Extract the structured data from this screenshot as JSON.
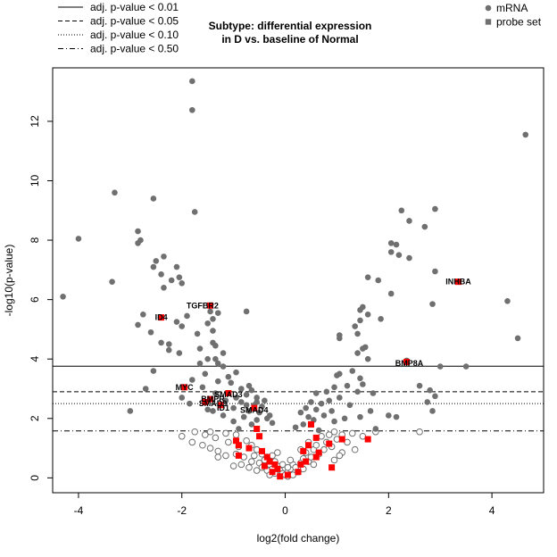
{
  "chart_data": {
    "type": "scatter",
    "title_lines": [
      "Subtype: differential expression",
      "in D vs. baseline of Normal"
    ],
    "xlabel": "log2(fold change)",
    "ylabel": "-log10(p-value)",
    "xlim": [
      -4.5,
      5.0
    ],
    "ylim": [
      -0.5,
      13.8
    ],
    "x_ticks": [
      -4,
      -2,
      0,
      2,
      4
    ],
    "y_ticks": [
      0,
      2,
      4,
      6,
      8,
      10,
      12
    ],
    "threshold_legend": [
      {
        "label": "adj. p-value < 0.01",
        "dash": "solid",
        "y": 3.76
      },
      {
        "label": "adj. p-value < 0.05",
        "dash": "dashed",
        "y": 2.9
      },
      {
        "label": "adj. p-value < 0.10",
        "dash": "dotted",
        "y": 2.5
      },
      {
        "label": "adj. p-value < 0.50",
        "dash": "dotdash",
        "y": 1.58
      }
    ],
    "type_legend": [
      {
        "label": "mRNA",
        "shape": "circle",
        "color": "#707070"
      },
      {
        "label": "probe set",
        "shape": "square",
        "color": "#707070"
      }
    ],
    "colors": {
      "mrna": "#707070",
      "probe": "#ff0000",
      "nonsig": "#707070"
    },
    "significant_points": [
      [
        -1.8,
        13.35
      ],
      [
        -1.8,
        12.38
      ],
      [
        -3.3,
        9.6
      ],
      [
        -2.55,
        9.4
      ],
      [
        -1.75,
        8.95
      ],
      [
        -2.85,
        8.3
      ],
      [
        -2.8,
        8.0
      ],
      [
        -2.85,
        7.9
      ],
      [
        -4.0,
        8.05
      ],
      [
        -2.35,
        7.45
      ],
      [
        -2.5,
        7.3
      ],
      [
        -2.55,
        7.1
      ],
      [
        -2.1,
        7.1
      ],
      [
        -2.4,
        6.85
      ],
      [
        -2.2,
        6.65
      ],
      [
        -2.05,
        6.75
      ],
      [
        -2.0,
        6.55
      ],
      [
        -3.35,
        6.6
      ],
      [
        -4.3,
        6.1
      ],
      [
        -2.35,
        6.4
      ],
      [
        -0.75,
        5.6
      ],
      [
        -1.45,
        5.6
      ],
      [
        -1.3,
        5.55
      ],
      [
        -1.4,
        5.35
      ],
      [
        -2.75,
        5.5
      ],
      [
        -1.9,
        5.45
      ],
      [
        -2.1,
        5.25
      ],
      [
        -1.5,
        5.2
      ],
      [
        -2.0,
        5.1
      ],
      [
        -2.85,
        5.15
      ],
      [
        -1.4,
        4.95
      ],
      [
        -2.6,
        4.9
      ],
      [
        -1.7,
        4.85
      ],
      [
        -2.4,
        4.55
      ],
      [
        -1.4,
        4.55
      ],
      [
        -2.25,
        4.5
      ],
      [
        -2.05,
        4.2
      ],
      [
        -1.35,
        4.45
      ],
      [
        -2.25,
        4.3
      ],
      [
        -1.35,
        4.0
      ],
      [
        -1.65,
        4.35
      ],
      [
        -1.2,
        4.2
      ],
      [
        -1.3,
        3.85
      ],
      [
        -1.5,
        4.0
      ],
      [
        -1.65,
        3.85
      ],
      [
        -1.55,
        3.5
      ],
      [
        -1.1,
        3.4
      ],
      [
        -2.55,
        3.6
      ],
      [
        -1.8,
        3.3
      ],
      [
        -1.2,
        3.75
      ],
      [
        -0.95,
        3.55
      ],
      [
        -1.3,
        3.25
      ],
      [
        -0.7,
        3.1
      ],
      [
        -1.05,
        3.2
      ],
      [
        -1.6,
        3.05
      ],
      [
        -0.85,
        3.0
      ],
      [
        -0.65,
        2.95
      ],
      [
        -1.35,
        2.85
      ],
      [
        -0.95,
        2.7
      ],
      [
        -0.75,
        2.8
      ],
      [
        -0.55,
        2.7
      ],
      [
        -1.15,
        2.6
      ],
      [
        -0.85,
        2.55
      ],
      [
        -0.6,
        2.45
      ],
      [
        -0.45,
        2.4
      ],
      [
        -1.0,
        2.35
      ],
      [
        -0.7,
        2.25
      ],
      [
        -0.5,
        2.2
      ],
      [
        -0.35,
        2.0
      ],
      [
        -0.25,
        1.85
      ],
      [
        -0.55,
        1.95
      ],
      [
        -0.65,
        1.8
      ],
      [
        -0.8,
        2.05
      ],
      [
        -1.0,
        1.9
      ],
      [
        -1.2,
        2.1
      ],
      [
        -1.4,
        2.25
      ],
      [
        -2.0,
        2.7
      ],
      [
        -2.7,
        3.0
      ],
      [
        -3.0,
        2.25
      ],
      [
        -1.85,
        2.5
      ],
      [
        -1.5,
        2.3
      ],
      [
        -0.9,
        1.65
      ],
      [
        -0.4,
        2.6
      ],
      [
        -0.3,
        2.1
      ],
      [
        -0.55,
        2.55
      ],
      [
        -0.75,
        2.45
      ],
      [
        4.65,
        11.55
      ],
      [
        2.25,
        9.0
      ],
      [
        2.9,
        9.05
      ],
      [
        2.4,
        8.65
      ],
      [
        2.7,
        8.45
      ],
      [
        2.05,
        7.9
      ],
      [
        2.15,
        7.85
      ],
      [
        2.05,
        7.6
      ],
      [
        2.2,
        7.5
      ],
      [
        2.4,
        7.4
      ],
      [
        2.9,
        6.95
      ],
      [
        1.6,
        6.75
      ],
      [
        1.8,
        6.65
      ],
      [
        3.35,
        6.6
      ],
      [
        2.05,
        6.2
      ],
      [
        4.3,
        5.95
      ],
      [
        2.85,
        5.85
      ],
      [
        1.5,
        5.75
      ],
      [
        1.45,
        5.65
      ],
      [
        1.6,
        5.5
      ],
      [
        1.85,
        5.35
      ],
      [
        1.45,
        5.3
      ],
      [
        1.35,
        5.1
      ],
      [
        1.4,
        4.85
      ],
      [
        1.05,
        4.8
      ],
      [
        1.05,
        4.7
      ],
      [
        4.5,
        4.7
      ],
      [
        1.55,
        4.4
      ],
      [
        1.5,
        4.35
      ],
      [
        1.4,
        4.2
      ],
      [
        1.6,
        4.0
      ],
      [
        2.35,
        3.95
      ],
      [
        3.0,
        3.75
      ],
      [
        3.5,
        3.75
      ],
      [
        1.3,
        3.6
      ],
      [
        1.45,
        3.35
      ],
      [
        1.05,
        3.5
      ],
      [
        1.0,
        3.45
      ],
      [
        1.5,
        3.15
      ],
      [
        1.2,
        3.1
      ],
      [
        0.95,
        3.05
      ],
      [
        1.4,
        2.9
      ],
      [
        1.7,
        2.85
      ],
      [
        2.6,
        3.1
      ],
      [
        2.8,
        2.95
      ],
      [
        2.9,
        2.75
      ],
      [
        0.8,
        2.9
      ],
      [
        0.6,
        2.85
      ],
      [
        1.05,
        2.7
      ],
      [
        0.85,
        2.6
      ],
      [
        0.7,
        2.5
      ],
      [
        0.5,
        2.55
      ],
      [
        1.25,
        2.45
      ],
      [
        0.4,
        2.35
      ],
      [
        0.6,
        2.3
      ],
      [
        0.9,
        2.25
      ],
      [
        0.3,
        2.2
      ],
      [
        0.45,
        2.05
      ],
      [
        0.75,
        2.1
      ],
      [
        0.55,
        1.95
      ],
      [
        0.35,
        1.8
      ],
      [
        0.2,
        1.7
      ],
      [
        0.95,
        1.9
      ],
      [
        1.15,
        2.0
      ],
      [
        1.45,
        2.05
      ],
      [
        1.65,
        2.25
      ],
      [
        2.0,
        2.1
      ],
      [
        2.15,
        2.05
      ],
      [
        2.75,
        2.55
      ],
      [
        2.85,
        2.25
      ],
      [
        1.75,
        1.65
      ],
      [
        0.65,
        1.6
      ]
    ],
    "nonsignificant_points": [
      [
        -1.75,
        1.55
      ],
      [
        -1.55,
        1.45
      ],
      [
        -1.35,
        1.35
      ],
      [
        -1.45,
        1.55
      ],
      [
        -1.15,
        1.5
      ],
      [
        -0.95,
        1.45
      ],
      [
        -1.6,
        1.1
      ],
      [
        -1.45,
        1.0
      ],
      [
        -1.3,
        0.9
      ],
      [
        -1.1,
        1.2
      ],
      [
        -0.9,
        1.05
      ],
      [
        -0.75,
        1.25
      ],
      [
        -0.65,
        1.1
      ],
      [
        -0.55,
        0.95
      ],
      [
        -1.3,
        0.7
      ],
      [
        -1.15,
        0.75
      ],
      [
        -0.95,
        0.8
      ],
      [
        -0.8,
        0.7
      ],
      [
        -0.6,
        0.75
      ],
      [
        -0.45,
        0.8
      ],
      [
        -0.35,
        0.7
      ],
      [
        -0.65,
        0.55
      ],
      [
        -0.5,
        0.5
      ],
      [
        -0.4,
        0.6
      ],
      [
        -0.3,
        0.45
      ],
      [
        -0.2,
        0.55
      ],
      [
        -0.15,
        0.4
      ],
      [
        -0.25,
        0.3
      ],
      [
        -0.1,
        0.25
      ],
      [
        -0.05,
        0.15
      ],
      [
        0.0,
        0.1
      ],
      [
        0.05,
        0.05
      ],
      [
        -0.35,
        0.25
      ],
      [
        -0.45,
        0.35
      ],
      [
        -0.55,
        0.25
      ],
      [
        -0.7,
        0.35
      ],
      [
        -0.85,
        0.45
      ],
      [
        -1.0,
        0.4
      ],
      [
        -0.2,
        0.15
      ],
      [
        -0.3,
        0.1
      ],
      [
        0.05,
        0.2
      ],
      [
        0.1,
        0.3
      ],
      [
        0.15,
        0.45
      ],
      [
        0.2,
        0.35
      ],
      [
        0.3,
        0.5
      ],
      [
        0.35,
        0.65
      ],
      [
        0.45,
        0.55
      ],
      [
        0.5,
        0.7
      ],
      [
        0.4,
        0.85
      ],
      [
        0.55,
        0.95
      ],
      [
        0.65,
        0.8
      ],
      [
        0.75,
        0.95
      ],
      [
        0.6,
        1.1
      ],
      [
        0.8,
        1.2
      ],
      [
        0.9,
        1.05
      ],
      [
        1.0,
        1.3
      ],
      [
        0.7,
        1.4
      ],
      [
        0.85,
        1.45
      ],
      [
        0.95,
        1.55
      ],
      [
        1.1,
        1.45
      ],
      [
        1.2,
        1.2
      ],
      [
        1.3,
        1.5
      ],
      [
        1.35,
        0.95
      ],
      [
        1.1,
        0.85
      ],
      [
        0.95,
        0.6
      ],
      [
        1.05,
        0.75
      ],
      [
        0.25,
        0.2
      ],
      [
        0.35,
        0.3
      ],
      [
        0.15,
        0.1
      ],
      [
        0.55,
        0.45
      ],
      [
        0.45,
        1.2
      ],
      [
        0.3,
        0.95
      ],
      [
        1.5,
        1.4
      ],
      [
        1.75,
        1.55
      ],
      [
        2.6,
        1.55
      ],
      [
        -2.0,
        1.4
      ],
      [
        -1.8,
        1.2
      ],
      [
        -0.25,
        0.75
      ],
      [
        -0.15,
        0.85
      ],
      [
        0.1,
        0.6
      ],
      [
        -0.05,
        0.45
      ],
      [
        0.05,
        0.35
      ]
    ],
    "probe_points": [
      [
        -1.45,
        5.8
      ],
      [
        -2.4,
        5.4
      ],
      [
        -1.95,
        3.05
      ],
      [
        -1.45,
        2.65
      ],
      [
        -1.55,
        2.55
      ],
      [
        -1.1,
        2.85
      ],
      [
        -1.25,
        2.45
      ],
      [
        -0.6,
        2.35
      ],
      [
        -0.55,
        1.65
      ],
      [
        -0.5,
        1.4
      ],
      [
        -0.95,
        1.25
      ],
      [
        -0.9,
        1.1
      ],
      [
        -0.9,
        0.75
      ],
      [
        -0.7,
        1.0
      ],
      [
        -0.45,
        0.9
      ],
      [
        -0.35,
        0.7
      ],
      [
        -0.3,
        0.55
      ],
      [
        -0.2,
        0.45
      ],
      [
        -0.15,
        0.3
      ],
      [
        -0.25,
        0.2
      ],
      [
        -0.4,
        0.4
      ],
      [
        -0.1,
        0.05
      ],
      [
        0.05,
        0.1
      ],
      [
        0.25,
        0.2
      ],
      [
        0.3,
        0.45
      ],
      [
        0.4,
        0.55
      ],
      [
        0.35,
        0.9
      ],
      [
        0.45,
        1.1
      ],
      [
        0.5,
        1.8
      ],
      [
        0.6,
        1.35
      ],
      [
        0.65,
        0.85
      ],
      [
        0.6,
        0.7
      ],
      [
        0.85,
        1.15
      ],
      [
        1.1,
        1.3
      ],
      [
        0.9,
        0.35
      ],
      [
        1.6,
        1.3
      ],
      [
        3.35,
        6.6
      ],
      [
        2.35,
        3.9
      ]
    ],
    "labels": [
      {
        "text": "INHBA",
        "x": 3.35,
        "y": 6.6,
        "anchor": "middle"
      },
      {
        "text": "TGFBR2",
        "x": -1.6,
        "y": 5.8,
        "anchor": "middle"
      },
      {
        "text": "ID4",
        "x": -2.4,
        "y": 5.4,
        "anchor": "middle"
      },
      {
        "text": "BMP8A",
        "x": 2.4,
        "y": 3.85,
        "anchor": "middle"
      },
      {
        "text": "MYC",
        "x": -1.95,
        "y": 3.05,
        "anchor": "middle"
      },
      {
        "text": "SMAD3",
        "x": -1.1,
        "y": 2.8,
        "anchor": "middle"
      },
      {
        "text": "BMPR",
        "x": -1.4,
        "y": 2.65,
        "anchor": "middle"
      },
      {
        "text": "SMAD9",
        "x": -1.4,
        "y": 2.5,
        "anchor": "middle"
      },
      {
        "text": "ID1",
        "x": -1.2,
        "y": 2.35,
        "anchor": "middle"
      },
      {
        "text": "SMAD4",
        "x": -0.6,
        "y": 2.28,
        "anchor": "middle"
      }
    ]
  }
}
